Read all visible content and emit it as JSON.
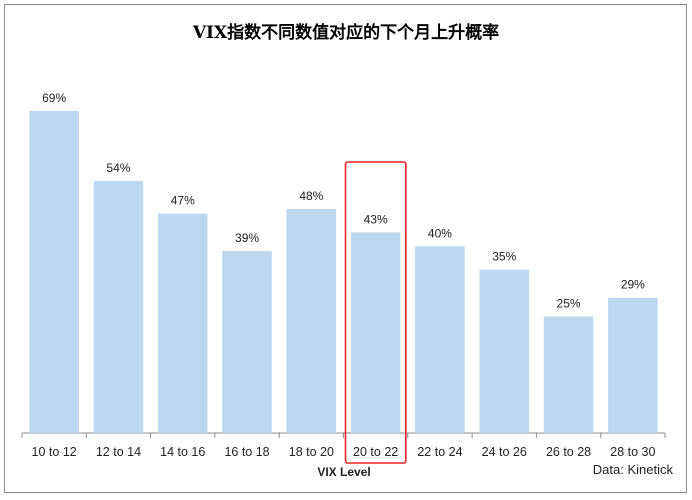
{
  "chart_data": {
    "type": "bar",
    "title": "VIX指数不同数值对应的下个月上升概率",
    "xlabel": "VIX Level",
    "ylabel": "",
    "categories": [
      "10 to 12",
      "12 to 14",
      "14 to 16",
      "16 to 18",
      "18 to 20",
      "20 to 22",
      "22 to 24",
      "24 to 26",
      "26 to 28",
      "28 to 30"
    ],
    "values": [
      69,
      54,
      47,
      39,
      48,
      43,
      40,
      35,
      25,
      29
    ],
    "data_labels": [
      "69%",
      "54%",
      "47%",
      "39%",
      "48%",
      "43%",
      "40%",
      "35%",
      "25%",
      "29%"
    ],
    "ylim": [
      0,
      69
    ],
    "grid": false,
    "legend": "none",
    "highlight_category": "20 to 22",
    "source": "Data: Kinetick"
  },
  "colors": {
    "bar": "#bdd7ee",
    "highlight_box": "#e8262a",
    "axis": "#8c8c8c"
  }
}
